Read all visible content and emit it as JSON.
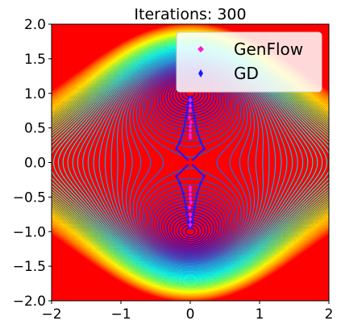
{
  "chart_data": {
    "type": "contour",
    "title": "Iterations: 300",
    "xlabel": "",
    "ylabel": "",
    "xlim": [
      -2,
      2
    ],
    "ylim": [
      -2,
      2
    ],
    "x_ticks": [
      "−2",
      "−1",
      "0",
      "1",
      "2"
    ],
    "y_ticks": [
      "2.0",
      "1.5",
      "1.0",
      "0.5",
      "0.0",
      "−0.5",
      "−1.0",
      "−1.5",
      "−2.0"
    ],
    "x_tick_values": [
      -2,
      -1,
      0,
      1,
      2
    ],
    "y_tick_values": [
      2.0,
      1.5,
      1.0,
      0.5,
      0.0,
      -0.5,
      -1.0,
      -1.5,
      -2.0
    ],
    "grid": false,
    "legend": {
      "placement": "top-right",
      "entries": [
        {
          "label": "GenFlow",
          "color": "#ff1ad9",
          "marker": "diamond"
        },
        {
          "label": "GD",
          "color": "#1a1aff",
          "marker": "diamond"
        }
      ]
    },
    "critical_points": [
      [
        0,
        1
      ],
      [
        0,
        0
      ],
      [
        0,
        -1
      ]
    ],
    "critical_point_color": "#ff0000",
    "series": [
      {
        "name": "GenFlow",
        "color": "#ff1ad9",
        "points": [
          [
            0,
            0.95
          ],
          [
            0,
            0.9
          ],
          [
            0,
            0.82
          ],
          [
            0,
            0.75
          ],
          [
            -0.01,
            0.65
          ],
          [
            0.01,
            0.58
          ],
          [
            0,
            0.52
          ],
          [
            0,
            0.46
          ],
          [
            0,
            0.4
          ],
          [
            0,
            0.36
          ],
          [
            0,
            -0.95
          ],
          [
            0,
            -0.9
          ],
          [
            0,
            -0.82
          ],
          [
            0,
            -0.75
          ],
          [
            -0.01,
            -0.65
          ],
          [
            0.01,
            -0.58
          ],
          [
            0,
            -0.52
          ],
          [
            0,
            -0.46
          ],
          [
            0,
            -0.4
          ],
          [
            0,
            -0.36
          ]
        ]
      },
      {
        "name": "GD",
        "color": "#1a1aff",
        "points": [
          [
            0.2,
            0.2
          ],
          [
            -0.2,
            0.2
          ],
          [
            0.2,
            -0.2
          ],
          [
            -0.2,
            -0.2
          ],
          [
            0.15,
            0.3
          ],
          [
            -0.15,
            0.3
          ],
          [
            0.15,
            -0.3
          ],
          [
            -0.15,
            -0.3
          ],
          [
            0.1,
            0.45
          ],
          [
            -0.1,
            0.45
          ],
          [
            0.1,
            -0.45
          ],
          [
            -0.1,
            -0.45
          ],
          [
            0.06,
            0.65
          ],
          [
            -0.06,
            0.65
          ],
          [
            0.06,
            -0.65
          ],
          [
            -0.06,
            -0.65
          ],
          [
            0.03,
            0.85
          ],
          [
            -0.03,
            0.85
          ],
          [
            0.03,
            -0.85
          ],
          [
            -0.03,
            -0.85
          ],
          [
            0.02,
            0.95
          ],
          [
            -0.02,
            0.95
          ],
          [
            0.02,
            -0.95
          ],
          [
            -0.02,
            -0.95
          ]
        ]
      }
    ],
    "colormap": [
      "#0000ff",
      "#00aaff",
      "#00ffee",
      "#66ff66",
      "#ffff00",
      "#ff8800",
      "#ff0000"
    ]
  }
}
